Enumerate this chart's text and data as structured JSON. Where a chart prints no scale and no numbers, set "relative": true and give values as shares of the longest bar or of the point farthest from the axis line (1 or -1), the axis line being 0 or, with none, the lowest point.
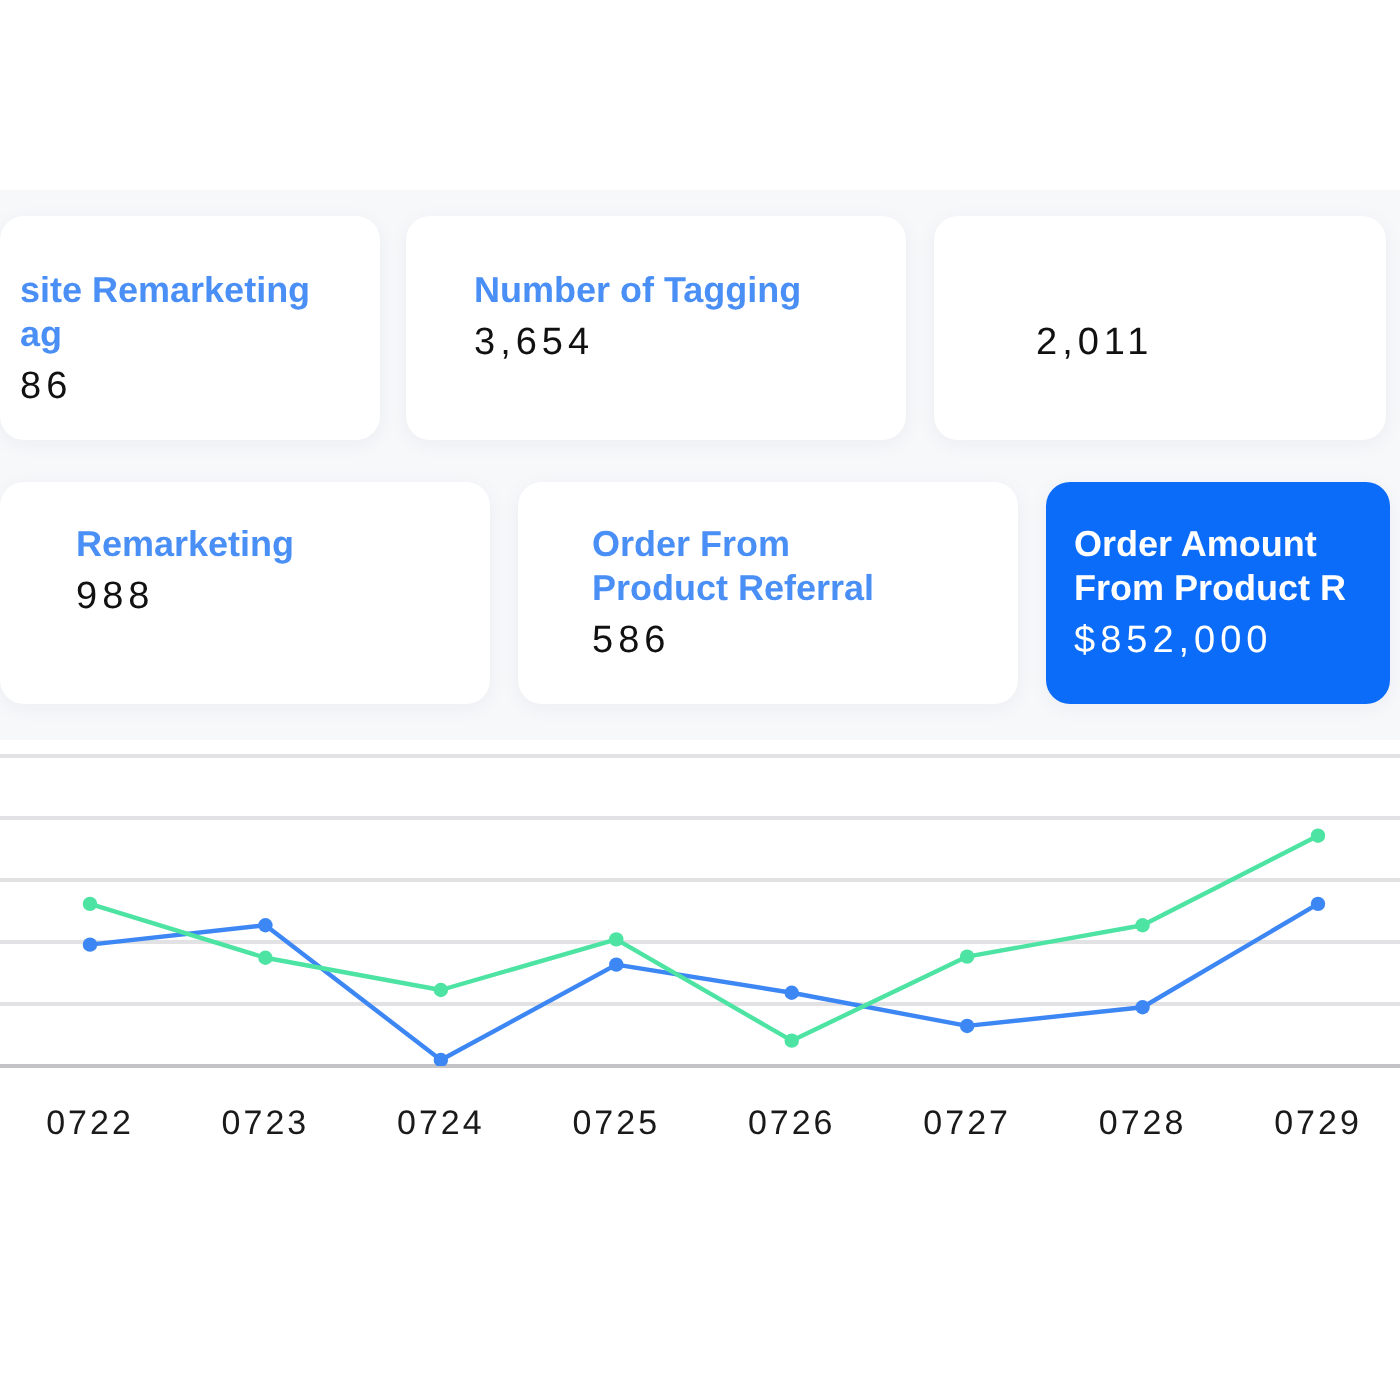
{
  "chart_data": [
    {
      "type": "other",
      "title": "site Remarketing ag",
      "annotations": [
        "86"
      ]
    },
    {
      "type": "other",
      "title": "Number of Tagging",
      "annotations": [
        "3,654"
      ]
    },
    {
      "type": "other",
      "annotations": [
        "2,011"
      ]
    },
    {
      "type": "other",
      "title": "Remarketing",
      "annotations": [
        "988"
      ]
    },
    {
      "type": "other",
      "title": "Order From Product Referral",
      "annotations": [
        "586"
      ]
    },
    {
      "type": "other",
      "title": "Order Amount From Product R",
      "annotations": [
        "$852,000"
      ],
      "color": "#0b6cf9"
    },
    {
      "type": "line",
      "categories": [
        "0722",
        "0723",
        "0724",
        "0725",
        "0726",
        "0727",
        "0728",
        "0729"
      ],
      "series": [
        {
          "color": "#3d87f5",
          "values": [
            0.527,
            0.611,
            0.026,
            0.44,
            0.318,
            0.174,
            0.255,
            0.704
          ]
        },
        {
          "color": "#4de3a3",
          "values": [
            0.704,
            0.47,
            0.33,
            0.55,
            0.11,
            0.475,
            0.611,
            1
          ]
        }
      ],
      "relative": true,
      "grid": "y",
      "marker": "circle",
      "line_style": "solid"
    }
  ]
}
